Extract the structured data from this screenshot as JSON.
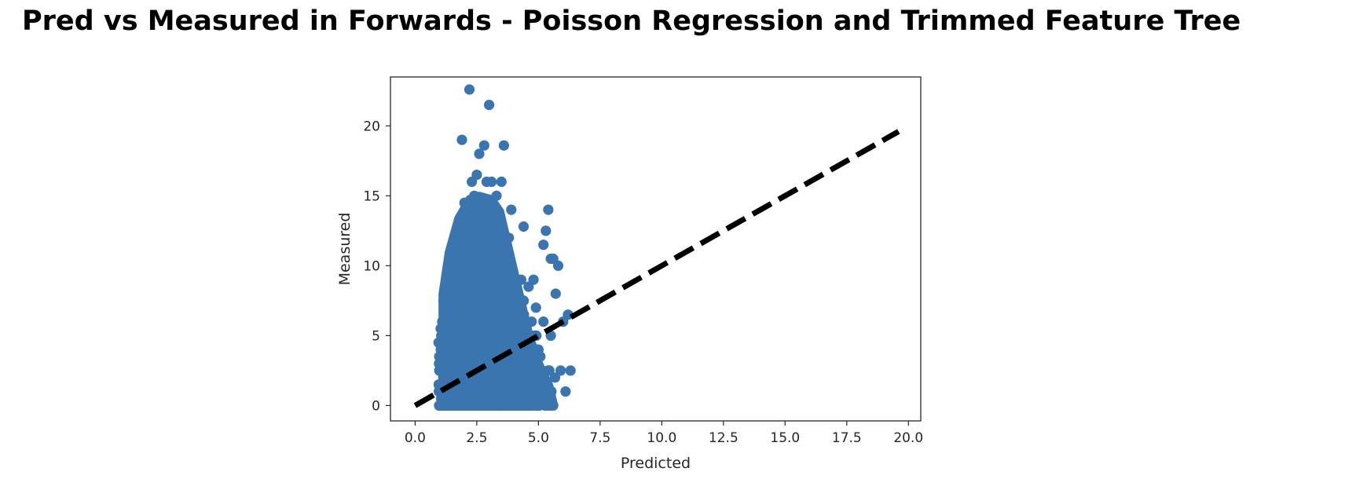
{
  "chart_data": {
    "type": "scatter",
    "title": "Pred vs Measured in Forwards - Poisson Regression and Trimmed Feature Tree",
    "xlabel": "Predicted",
    "ylabel": "Measured",
    "xlim": [
      -1.0,
      20.5
    ],
    "ylim": [
      -1.1,
      23.5
    ],
    "xticks": [
      0.0,
      2.5,
      5.0,
      7.5,
      10.0,
      12.5,
      15.0,
      17.5,
      20.0
    ],
    "xtick_labels": [
      "0.0",
      "2.5",
      "5.0",
      "7.5",
      "10.0",
      "12.5",
      "15.0",
      "17.5",
      "20.0"
    ],
    "yticks": [
      0,
      5,
      10,
      15,
      20
    ],
    "ytick_labels": [
      "0",
      "5",
      "10",
      "15",
      "20"
    ],
    "grid": false,
    "series": [
      {
        "kind": "points",
        "color": "#3b75af",
        "x": [
          2.2,
          3.0,
          1.9,
          3.6,
          2.8,
          2.6,
          2.5,
          2.3,
          2.9,
          3.1,
          3.5,
          3.9,
          5.4,
          5.3,
          4.4,
          5.2,
          5.6,
          5.5,
          5.8,
          5.7,
          6.2,
          6.0,
          4.6,
          4.9,
          5.2,
          5.5,
          5.0,
          5.9,
          6.3,
          6.1,
          5.6,
          5.4,
          5.0,
          4.7,
          4.4,
          4.1,
          3.6,
          3.2,
          2.7,
          2.2,
          1.8,
          1.4,
          1.1,
          0.95,
          2.0,
          2.4,
          3.3,
          3.8,
          4.3,
          4.8,
          2.1,
          2.7,
          3.4,
          3.0,
          1.6,
          1.3,
          4.2,
          3.9,
          4.9,
          5.1
        ],
        "y": [
          22.6,
          21.5,
          19.0,
          18.6,
          18.6,
          18.0,
          16.5,
          16.0,
          16.0,
          16.0,
          16.0,
          14.0,
          14.0,
          12.5,
          12.8,
          11.5,
          10.5,
          10.5,
          10.0,
          8.0,
          6.5,
          6.0,
          8.5,
          7.0,
          6.0,
          5.0,
          4.0,
          2.5,
          2.5,
          1.0,
          0.0,
          0.0,
          0.0,
          0.0,
          0.0,
          0.0,
          0.0,
          0.0,
          0.0,
          0.0,
          0.0,
          0.0,
          0.0,
          4.5,
          14.5,
          15.0,
          15.0,
          12.0,
          9.0,
          9.0,
          13.0,
          13.5,
          10.0,
          11.0,
          11.0,
          9.0,
          6.0,
          7.5,
          3.0,
          2.0
        ]
      },
      {
        "kind": "dashed-line",
        "color": "#000000",
        "x": [
          0,
          19.6
        ],
        "y": [
          0,
          19.6
        ]
      }
    ]
  }
}
